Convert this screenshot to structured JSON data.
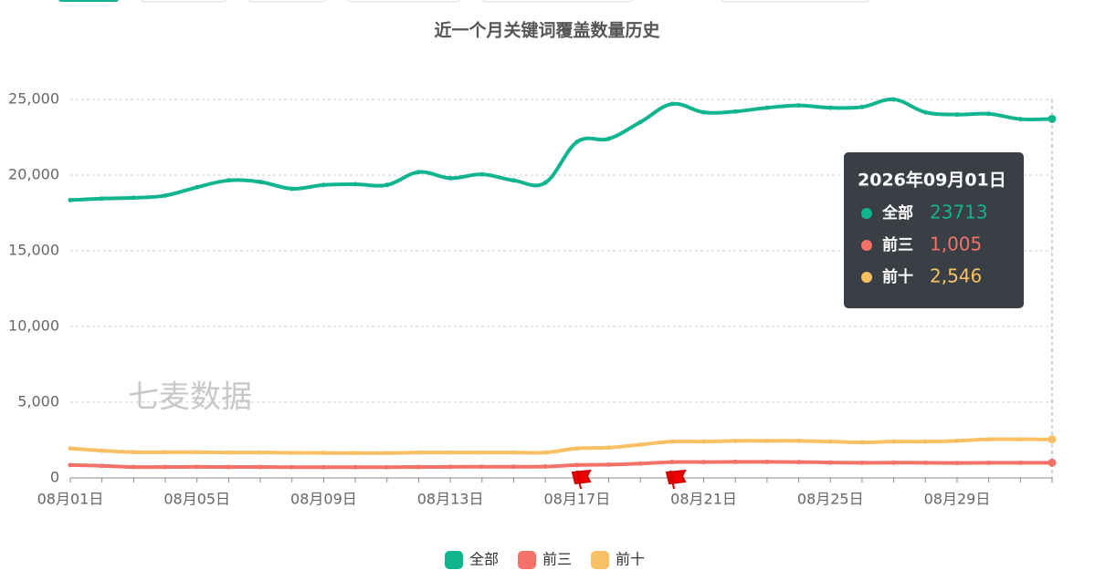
{
  "chart_data": {
    "type": "line",
    "title": "近一个月关键词覆盖数量历史",
    "categories": [
      "08月01日",
      null,
      null,
      null,
      "08月05日",
      null,
      null,
      null,
      "08月09日",
      null,
      null,
      null,
      "08月13日",
      null,
      null,
      null,
      "08月17日",
      null,
      null,
      null,
      "08月21日",
      null,
      null,
      null,
      "08月25日",
      null,
      null,
      null,
      "08月29日",
      null,
      null,
      null
    ],
    "series": [
      {
        "name": "全部",
        "color": "#10b58f",
        "values": [
          18350,
          18450,
          18500,
          18650,
          19200,
          19650,
          19550,
          19100,
          19350,
          19400,
          19350,
          20200,
          19800,
          20050,
          19650,
          19500,
          22200,
          22400,
          23500,
          24700,
          24150,
          24200,
          24450,
          24600,
          24450,
          24500,
          25000,
          24150,
          24000,
          24050,
          23700,
          23713
        ]
      },
      {
        "name": "前三",
        "color": "#f2726a",
        "values": [
          850,
          800,
          720,
          720,
          730,
          720,
          720,
          710,
          710,
          710,
          710,
          720,
          730,
          740,
          740,
          750,
          850,
          880,
          950,
          1050,
          1050,
          1060,
          1060,
          1050,
          1020,
          1000,
          1010,
          1000,
          990,
          1000,
          1000,
          1005
        ]
      },
      {
        "name": "前十",
        "color": "#f8c064",
        "values": [
          1950,
          1800,
          1700,
          1700,
          1700,
          1680,
          1680,
          1660,
          1650,
          1640,
          1640,
          1680,
          1680,
          1680,
          1680,
          1680,
          1950,
          2000,
          2200,
          2400,
          2400,
          2450,
          2450,
          2450,
          2400,
          2350,
          2400,
          2400,
          2450,
          2550,
          2550,
          2546
        ]
      }
    ],
    "ylim": [
      0,
      25000
    ],
    "yticks": [
      0,
      {
        "value": 5000,
        "label": "5,000"
      },
      {
        "value": 10000,
        "label": "10,000"
      },
      {
        "value": 15000,
        "label": "15,000"
      },
      {
        "value": 20000,
        "label": "20,000"
      },
      {
        "value": 25000,
        "label": "25,000"
      }
    ],
    "grid": true,
    "legend": "bottom",
    "watermark": "七麦数据",
    "tooltip": {
      "title": "2026年09月01日",
      "value_labels": [
        "23713",
        "1,005",
        "2,546"
      ]
    }
  }
}
